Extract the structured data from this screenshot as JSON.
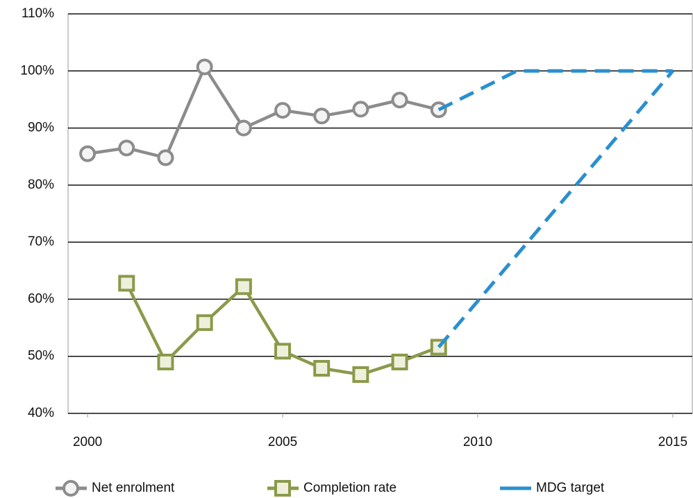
{
  "chart_data": {
    "type": "line",
    "xlim": [
      1999.5,
      2015.5
    ],
    "xticks": [
      2000,
      2005,
      2010,
      2015
    ],
    "ylim": [
      40,
      110
    ],
    "yticks": [
      {
        "value": 40,
        "label": "40%"
      },
      {
        "value": 50,
        "label": "50%"
      },
      {
        "value": 60,
        "label": "60%"
      },
      {
        "value": 70,
        "label": "70%"
      },
      {
        "value": 80,
        "label": "80%"
      },
      {
        "value": 90,
        "label": "90%"
      },
      {
        "value": 100,
        "label": "100%"
      },
      {
        "value": 110,
        "label": "110%"
      }
    ],
    "grid": true,
    "legend": "bottom",
    "series": [
      {
        "name": "Net enrolment",
        "color": "#8c8c8c",
        "marker": "circle",
        "x": [
          2000,
          2001,
          2002,
          2003,
          2004,
          2005,
          2006,
          2007,
          2008,
          2009
        ],
        "values": [
          85.5,
          86.5,
          84.8,
          100.7,
          90,
          93.1,
          92.1,
          93.3,
          94.9,
          93.2
        ]
      },
      {
        "name": "Completion rate",
        "color": "#8a9a4a",
        "marker": "square",
        "x": [
          2001,
          2002,
          2003,
          2004,
          2005,
          2006,
          2007,
          2008,
          2009
        ],
        "values": [
          62.8,
          49,
          55.9,
          62.2,
          50.9,
          47.9,
          46.8,
          49,
          51.6
        ]
      },
      {
        "name": "MDG target",
        "color": "#2a8fd0",
        "dashed": true,
        "x": [
          2009,
          2011,
          2015,
          null,
          2009,
          2015
        ],
        "values": [
          93.2,
          100,
          100,
          null,
          51.6,
          100
        ]
      }
    ]
  }
}
